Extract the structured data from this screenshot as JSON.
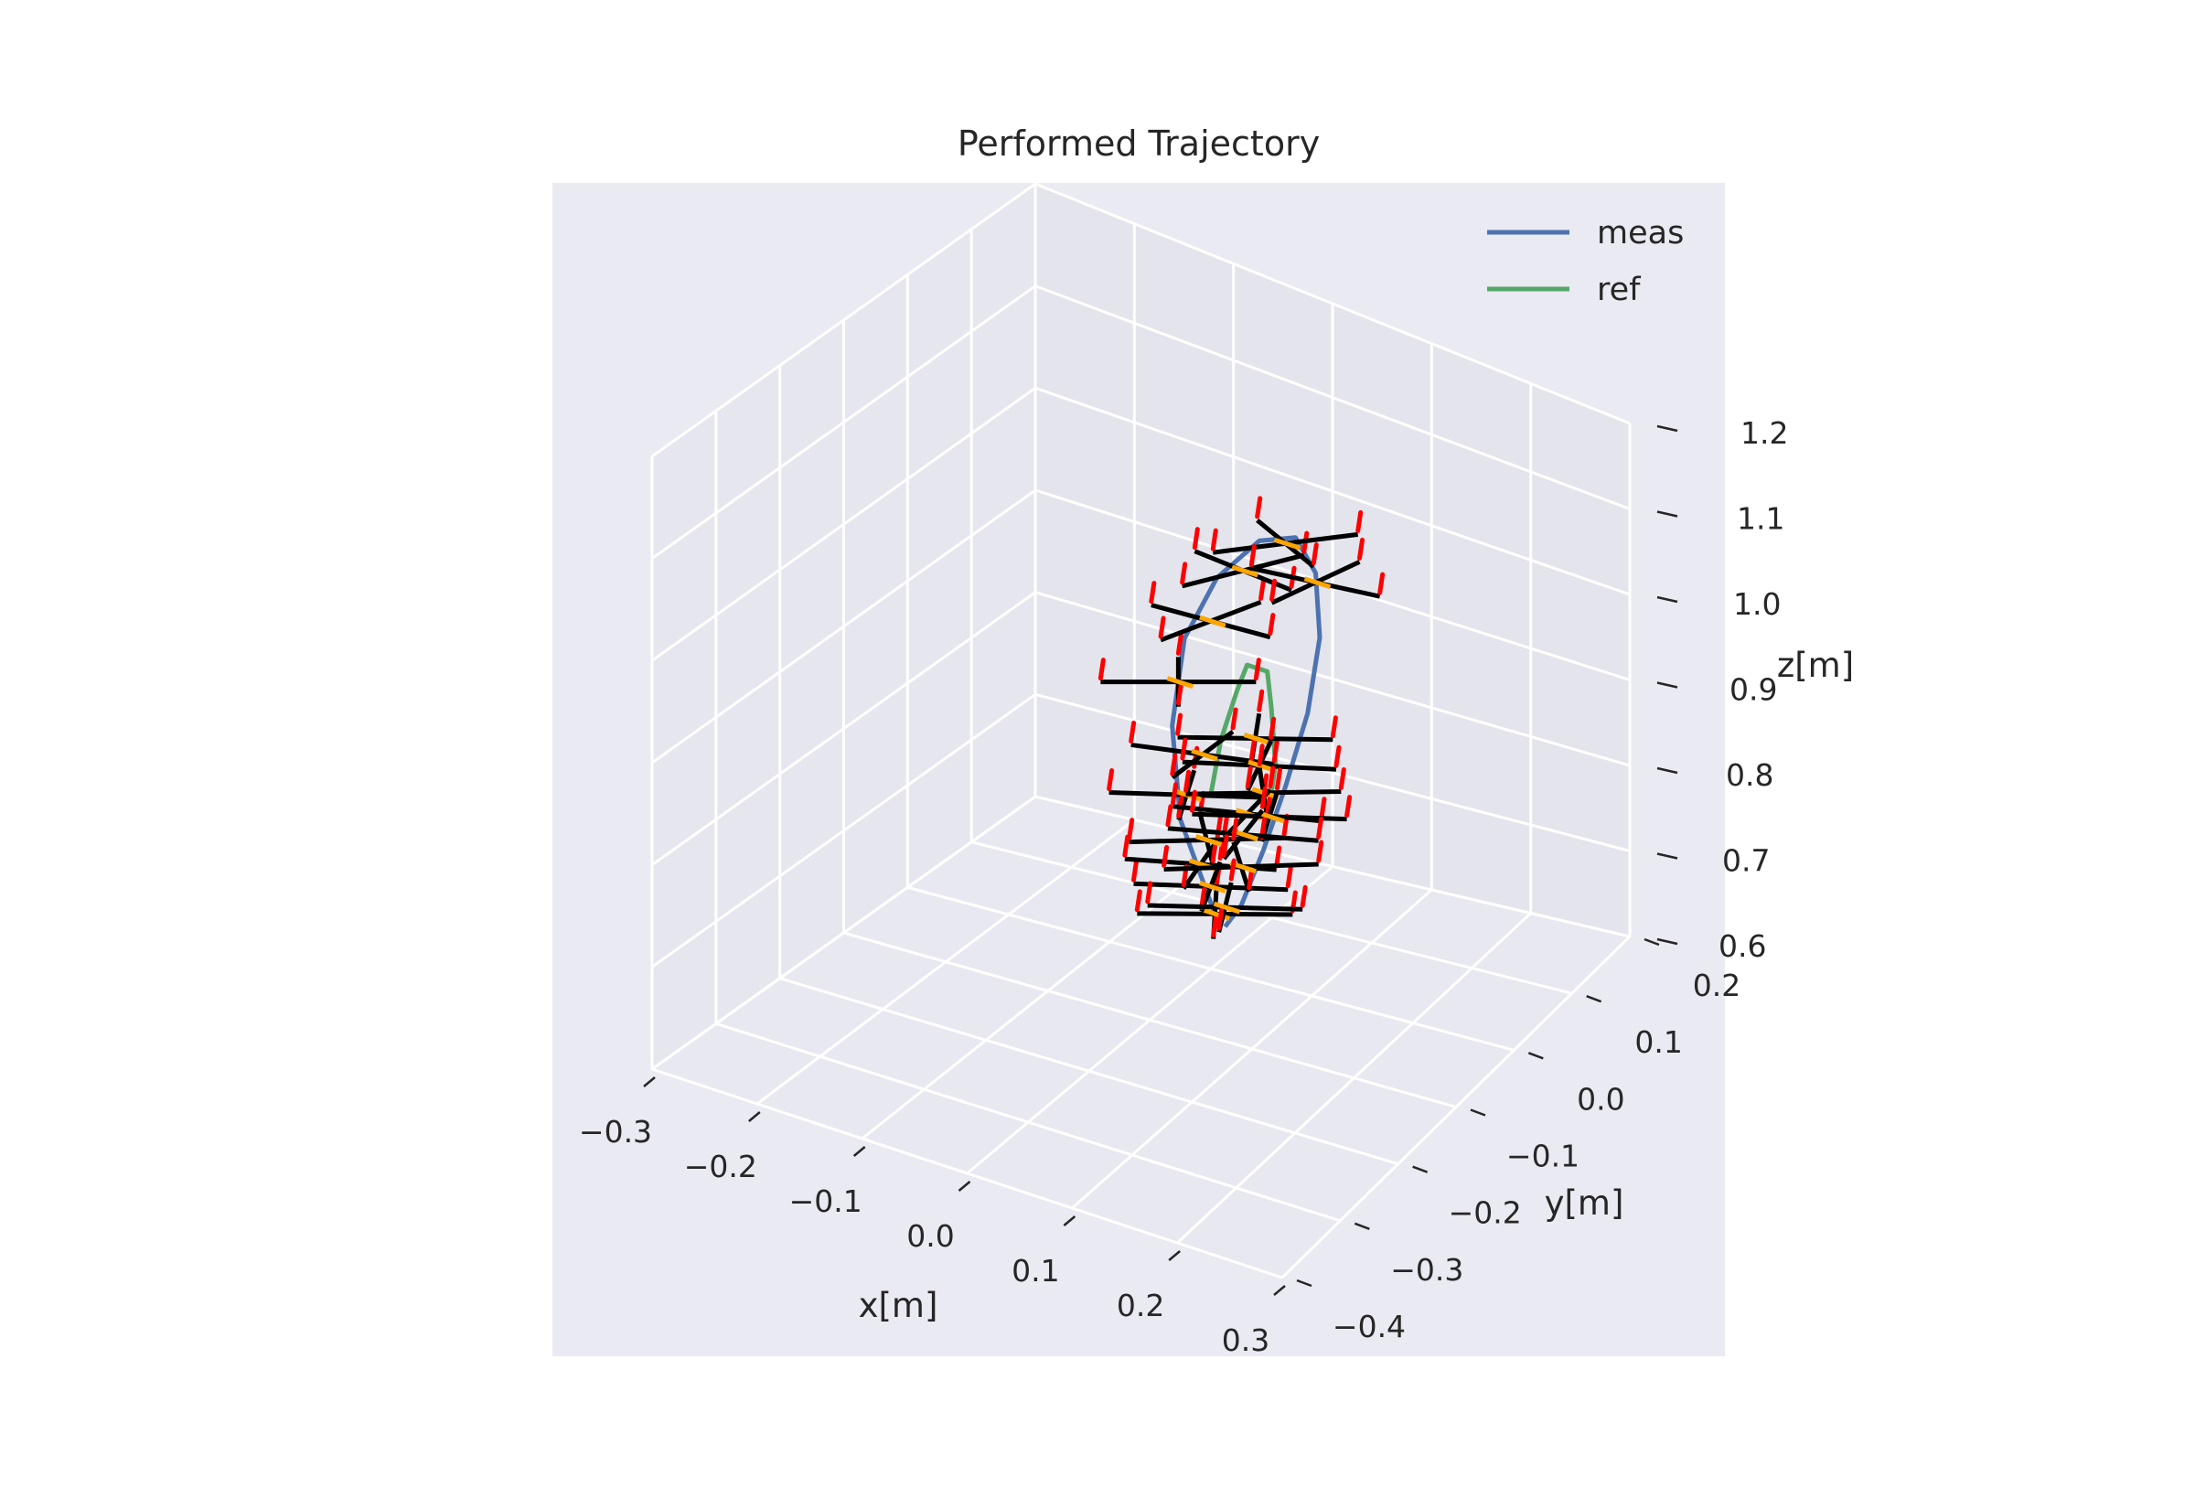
{
  "chart_data": {
    "type": "line",
    "projection": "3d",
    "title": "Performed Trajectory",
    "xlabel": "x[m]",
    "ylabel": "y[m]",
    "zlabel": "z[m]",
    "xlim": [
      -0.3,
      0.3
    ],
    "ylim": [
      -0.4,
      0.2
    ],
    "zlim": [
      0.6,
      1.2
    ],
    "x_ticks": [
      "−0.3",
      "−0.2",
      "−0.1",
      "0.0",
      "0.1",
      "0.2",
      "0.3"
    ],
    "y_ticks": [
      "−0.4",
      "−0.3",
      "−0.2",
      "−0.1",
      "0.0",
      "0.1",
      "0.2"
    ],
    "z_ticks": [
      "0.6",
      "0.7",
      "0.8",
      "0.9",
      "1.0",
      "1.1",
      "1.2"
    ],
    "grid": true,
    "legend_position": "top-right",
    "series": [
      {
        "name": "meas",
        "color": "#4c72b0",
        "points": [
          {
            "x": 0.04,
            "y": -0.06,
            "z": 0.7
          },
          {
            "x": 0.0,
            "y": -0.05,
            "z": 0.78
          },
          {
            "x": -0.02,
            "y": -0.03,
            "z": 0.86
          },
          {
            "x": -0.02,
            "y": -0.01,
            "z": 0.94
          },
          {
            "x": 0.0,
            "y": 0.01,
            "z": 1.0
          },
          {
            "x": 0.03,
            "y": 0.03,
            "z": 1.04
          },
          {
            "x": 0.06,
            "y": 0.04,
            "z": 1.05
          },
          {
            "x": 0.08,
            "y": 0.04,
            "z": 1.02
          },
          {
            "x": 0.09,
            "y": 0.03,
            "z": 0.96
          },
          {
            "x": 0.09,
            "y": 0.01,
            "z": 0.89
          },
          {
            "x": 0.08,
            "y": -0.01,
            "z": 0.82
          },
          {
            "x": 0.07,
            "y": -0.03,
            "z": 0.76
          },
          {
            "x": 0.06,
            "y": -0.05,
            "z": 0.71
          },
          {
            "x": 0.05,
            "y": -0.06,
            "z": 0.69
          }
        ]
      },
      {
        "name": "ref",
        "color": "#55a868",
        "points": [
          {
            "x": 0.0,
            "y": 0.0,
            "z": 0.78
          },
          {
            "x": 0.01,
            "y": 0.0,
            "z": 0.84
          },
          {
            "x": 0.02,
            "y": 0.01,
            "z": 0.89
          },
          {
            "x": 0.03,
            "y": 0.01,
            "z": 0.92
          },
          {
            "x": 0.05,
            "y": 0.01,
            "z": 0.92
          },
          {
            "x": 0.06,
            "y": 0.0,
            "z": 0.89
          },
          {
            "x": 0.07,
            "y": -0.01,
            "z": 0.84
          },
          {
            "x": 0.07,
            "y": -0.02,
            "z": 0.8
          }
        ]
      }
    ],
    "drone_markers": [
      {
        "x": 0.04,
        "y": -0.06,
        "z": 0.7,
        "yaw": 0.02
      },
      {
        "x": 0.03,
        "y": -0.05,
        "z": 0.72,
        "yaw": 0.12
      },
      {
        "x": 0.02,
        "y": -0.05,
        "z": 0.74,
        "yaw": 0.22
      },
      {
        "x": 0.02,
        "y": -0.04,
        "z": 0.76,
        "yaw": -0.08
      },
      {
        "x": 0.0,
        "y": -0.04,
        "z": 0.8,
        "yaw": 0.1
      },
      {
        "x": 0.01,
        "y": -0.03,
        "z": 0.84,
        "yaw": 0.4
      },
      {
        "x": -0.02,
        "y": -0.02,
        "z": 0.9,
        "yaw": 0.0
      },
      {
        "x": 0.0,
        "y": 0.0,
        "z": 0.96,
        "yaw": 0.7
      },
      {
        "x": 0.02,
        "y": 0.02,
        "z": 1.01,
        "yaw": 0.9
      },
      {
        "x": 0.05,
        "y": 0.04,
        "z": 1.04,
        "yaw": 1.2
      },
      {
        "x": 0.08,
        "y": 0.04,
        "z": 1.01,
        "yaw": 0.6
      },
      {
        "x": 0.05,
        "y": -0.01,
        "z": 0.86,
        "yaw": 0.05
      },
      {
        "x": 0.06,
        "y": -0.02,
        "z": 0.84,
        "yaw": 0.15
      },
      {
        "x": 0.07,
        "y": -0.03,
        "z": 0.82,
        "yaw": -0.05
      },
      {
        "x": 0.06,
        "y": -0.04,
        "z": 0.8,
        "yaw": 0.3
      },
      {
        "x": 0.07,
        "y": -0.02,
        "z": 0.79,
        "yaw": 0.1
      },
      {
        "x": 0.05,
        "y": -0.03,
        "z": 0.77,
        "yaw": 0.25
      },
      {
        "x": 0.06,
        "y": -0.05,
        "z": 0.75,
        "yaw": -0.1
      },
      {
        "x": 0.05,
        "y": -0.06,
        "z": 0.71,
        "yaw": 0.08
      }
    ]
  }
}
